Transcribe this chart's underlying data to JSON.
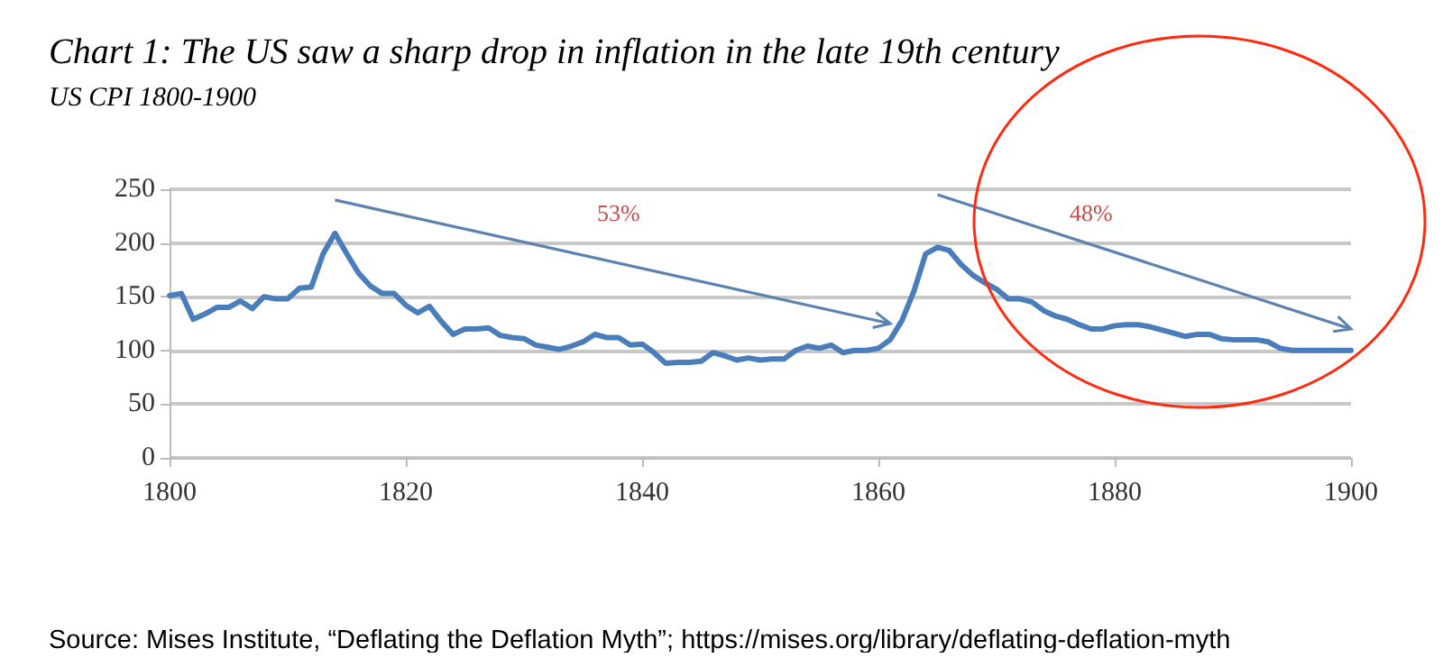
{
  "chart_data": {
    "type": "line",
    "title": "Chart 1: The US saw a sharp drop in inflation in the late 19th century",
    "subtitle": "US CPI 1800-1900",
    "x": [
      1800,
      1801,
      1802,
      1803,
      1804,
      1805,
      1806,
      1807,
      1808,
      1809,
      1810,
      1811,
      1812,
      1813,
      1814,
      1815,
      1816,
      1817,
      1818,
      1819,
      1820,
      1821,
      1822,
      1823,
      1824,
      1825,
      1826,
      1827,
      1828,
      1829,
      1830,
      1831,
      1832,
      1833,
      1834,
      1835,
      1836,
      1837,
      1838,
      1839,
      1840,
      1841,
      1842,
      1843,
      1844,
      1845,
      1846,
      1847,
      1848,
      1849,
      1850,
      1851,
      1852,
      1853,
      1854,
      1855,
      1856,
      1857,
      1858,
      1859,
      1860,
      1861,
      1862,
      1863,
      1864,
      1865,
      1866,
      1867,
      1868,
      1869,
      1870,
      1871,
      1872,
      1873,
      1874,
      1875,
      1876,
      1877,
      1878,
      1879,
      1880,
      1881,
      1882,
      1883,
      1884,
      1885,
      1886,
      1887,
      1888,
      1889,
      1890,
      1891,
      1892,
      1893,
      1894,
      1895,
      1896,
      1897,
      1898,
      1899,
      1900
    ],
    "series": [
      {
        "color": "#4a7ebb",
        "values": [
          151,
          153,
          129,
          134,
          140,
          140,
          146,
          139,
          150,
          148,
          148,
          158,
          159,
          190,
          209,
          190,
          172,
          160,
          153,
          153,
          142,
          135,
          141,
          127,
          115,
          120,
          120,
          121,
          114,
          112,
          111,
          105,
          103,
          101,
          104,
          108,
          115,
          112,
          112,
          105,
          106,
          98,
          88,
          89,
          89,
          90,
          98,
          95,
          91,
          93,
          91,
          92,
          92,
          100,
          104,
          102,
          105,
          98,
          100,
          100,
          102,
          110,
          128,
          155,
          190,
          196,
          193,
          180,
          170,
          163,
          157,
          148,
          148,
          145,
          137,
          132,
          129,
          124,
          120,
          120,
          123,
          124,
          124,
          122,
          119,
          116,
          113,
          115,
          115,
          111,
          110,
          110,
          110,
          108,
          102,
          100,
          100,
          100,
          100,
          100,
          100
        ]
      }
    ],
    "xlim": [
      1800,
      1900
    ],
    "xticks": [
      1800,
      1820,
      1840,
      1860,
      1880,
      1900
    ],
    "ylim": [
      0,
      250
    ],
    "yticks": [
      0,
      50,
      100,
      150,
      200,
      250
    ],
    "grid": "y",
    "marker": "none",
    "line_style": "solid",
    "annotations": [
      "53%",
      "48%",
      "Source: Mises Institute, “Deflating the Deflation Myth”; https://mises.org/library/deflating-deflation-myth"
    ]
  }
}
